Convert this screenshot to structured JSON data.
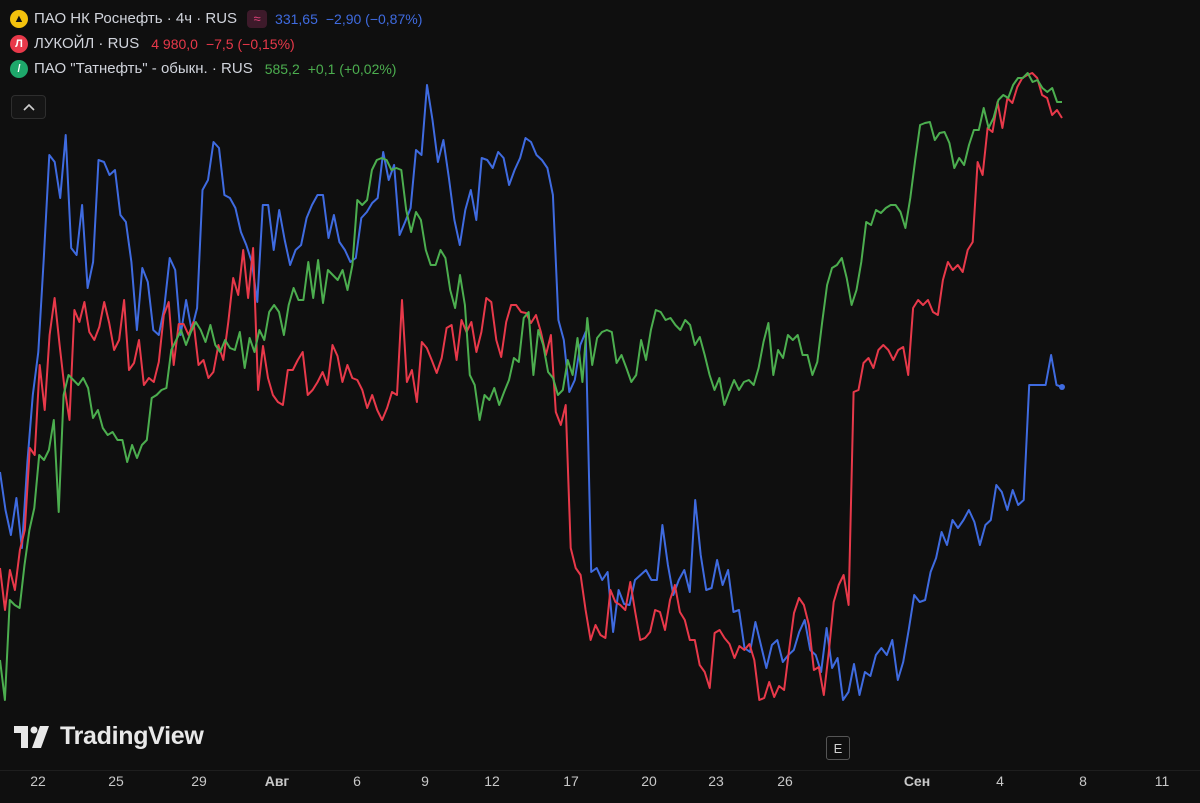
{
  "legend": [
    {
      "name": "ПАО НК Роснефть · 4ч · RUS",
      "icon": "flame-icon",
      "badge": "≈",
      "price": "331,65",
      "change": "−2,90 (−0,87%)",
      "color": "#3f6be0"
    },
    {
      "name": "ЛУКОЙЛ · RUS",
      "icon": "lukoil-logo-icon",
      "price": "4 980,0",
      "change": "−7,5 (−0,15%)",
      "color": "#e8394a"
    },
    {
      "name": "ПАО \"Татнефть\" - обыкн. · RUS",
      "icon": "drop-icon",
      "price": "585,2",
      "change": "+0,1 (+0,02%)",
      "color": "#4cae4f"
    }
  ],
  "collapse_icon": "chevron-up-icon",
  "watermark": "TradingView",
  "e_badge": "E",
  "chart_data": {
    "type": "line",
    "x_ticks": [
      "22",
      "25",
      "29",
      "Авг",
      "6",
      "9",
      "12",
      "17",
      "20",
      "23",
      "26",
      "Сен",
      "4",
      "8",
      "11"
    ],
    "series": [
      {
        "name": "ПАО НК Роснефть",
        "color": "#3f6be0",
        "values": [
          472,
          510,
          535,
          498,
          548,
          462,
          395,
          352,
          258,
          155,
          162,
          198,
          135,
          248,
          255,
          205,
          288,
          262,
          160,
          162,
          175,
          170,
          215,
          222,
          262,
          330,
          268,
          282,
          330,
          335,
          308,
          258,
          270,
          335,
          300,
          330,
          308,
          190,
          180,
          142,
          148,
          195,
          198,
          208,
          232,
          245,
          262,
          302,
          205,
          205,
          250,
          210,
          240,
          265,
          250,
          245,
          218,
          205,
          195,
          195,
          238,
          215,
          242,
          250,
          262,
          258,
          218,
          212,
          203,
          198,
          152,
          180,
          165,
          235,
          222,
          208,
          150,
          155,
          85,
          120,
          162,
          140,
          178,
          220,
          245,
          210,
          190,
          220,
          158,
          160,
          168,
          152,
          158,
          185,
          170,
          158,
          138,
          142,
          155,
          160,
          168,
          195,
          320,
          340,
          392,
          380,
          345,
          332,
          572,
          568,
          580,
          572,
          632,
          590,
          604,
          605,
          580,
          575,
          570,
          580,
          580,
          525,
          565,
          595,
          580,
          570,
          592,
          500,
          555,
          590,
          588,
          560,
          585,
          570,
          612,
          610,
          648,
          652,
          622,
          645,
          668,
          645,
          640,
          662,
          655,
          650,
          632,
          620,
          650,
          655,
          672,
          628,
          668,
          658,
          700,
          692,
          664,
          695,
          672,
          676,
          655,
          648,
          655,
          640,
          680,
          662,
          630,
          595,
          602,
          600,
          572,
          558,
          532,
          545,
          520,
          528,
          520,
          510,
          522,
          545,
          525,
          520,
          485,
          492,
          510,
          490,
          505,
          500,
          385,
          385,
          385,
          385,
          355,
          385,
          387
        ]
      },
      {
        "name": "ЛУКОЙЛ",
        "color": "#e8394a",
        "values": [
          568,
          610,
          570,
          590,
          550,
          530,
          448,
          455,
          365,
          410,
          335,
          298,
          345,
          388,
          420,
          310,
          322,
          302,
          332,
          340,
          327,
          302,
          323,
          350,
          340,
          300,
          370,
          363,
          340,
          385,
          378,
          382,
          362,
          315,
          302,
          365,
          324,
          324,
          335,
          322,
          365,
          360,
          378,
          372,
          345,
          360,
          322,
          278,
          295,
          250,
          298,
          248,
          390,
          346,
          378,
          395,
          402,
          405,
          370,
          370,
          360,
          352,
          395,
          390,
          382,
          372,
          385,
          345,
          356,
          382,
          365,
          378,
          380,
          390,
          408,
          395,
          410,
          420,
          408,
          392,
          395,
          300,
          382,
          370,
          402,
          342,
          348,
          360,
          373,
          358,
          328,
          325,
          360,
          320,
          332,
          322,
          352,
          332,
          298,
          302,
          340,
          357,
          322,
          305,
          305,
          312,
          313,
          323,
          315,
          332,
          355,
          335,
          412,
          425,
          405,
          548,
          568,
          575,
          610,
          640,
          625,
          635,
          638,
          590,
          602,
          605,
          610,
          582,
          612,
          640,
          638,
          632,
          610,
          612,
          630,
          600,
          585,
          612,
          620,
          640,
          640,
          665,
          672,
          688,
          633,
          630,
          638,
          644,
          658,
          646,
          650,
          644,
          660,
          700,
          698,
          682,
          697,
          686,
          690,
          650,
          613,
          598,
          605,
          625,
          670,
          667,
          695,
          652,
          602,
          585,
          575,
          605,
          392,
          390,
          363,
          358,
          368,
          350,
          345,
          350,
          360,
          350,
          347,
          375,
          308,
          300,
          305,
          300,
          312,
          315,
          280,
          262,
          270,
          265,
          272,
          250,
          242,
          162,
          175,
          128,
          132,
          102,
          128,
          98,
          103,
          87,
          78,
          75,
          73,
          78,
          95,
          98,
          115,
          110,
          118
        ]
      },
      {
        "name": "ПАО \"Татнефть\"",
        "color": "#4cae4f",
        "values": [
          660,
          700,
          600,
          605,
          608,
          565,
          530,
          508,
          455,
          460,
          450,
          420,
          512,
          395,
          375,
          380,
          385,
          378,
          388,
          418,
          410,
          428,
          435,
          432,
          440,
          440,
          462,
          445,
          458,
          445,
          440,
          398,
          395,
          390,
          388,
          350,
          340,
          330,
          345,
          332,
          322,
          330,
          342,
          325,
          345,
          352,
          340,
          348,
          350,
          332,
          368,
          338,
          352,
          330,
          340,
          312,
          305,
          312,
          335,
          305,
          288,
          300,
          300,
          262,
          298,
          260,
          303,
          270,
          275,
          280,
          270,
          290,
          265,
          200,
          205,
          200,
          170,
          160,
          158,
          160,
          170,
          168,
          170,
          210,
          232,
          212,
          220,
          250,
          265,
          265,
          250,
          258,
          290,
          308,
          275,
          305,
          375,
          385,
          420,
          395,
          400,
          388,
          405,
          392,
          380,
          358,
          362,
          318,
          312,
          375,
          330,
          345,
          372,
          378,
          395,
          390,
          360,
          375,
          338,
          382,
          318,
          365,
          338,
          332,
          330,
          332,
          363,
          355,
          368,
          382,
          375,
          340,
          360,
          330,
          310,
          312,
          320,
          318,
          325,
          330,
          320,
          325,
          345,
          337,
          355,
          375,
          390,
          378,
          405,
          392,
          380,
          390,
          382,
          380,
          385,
          368,
          342,
          323,
          375,
          350,
          358,
          335,
          340,
          335,
          355,
          355,
          375,
          362,
          322,
          285,
          268,
          265,
          258,
          278,
          305,
          290,
          262,
          222,
          225,
          210,
          213,
          208,
          205,
          205,
          212,
          228,
          198,
          160,
          125,
          123,
          122,
          140,
          133,
          132,
          143,
          168,
          158,
          165,
          145,
          130,
          130,
          108,
          128,
          118,
          100,
          95,
          98,
          85,
          78,
          78,
          73,
          82,
          80,
          88,
          92,
          88,
          102,
          102
        ]
      }
    ]
  }
}
